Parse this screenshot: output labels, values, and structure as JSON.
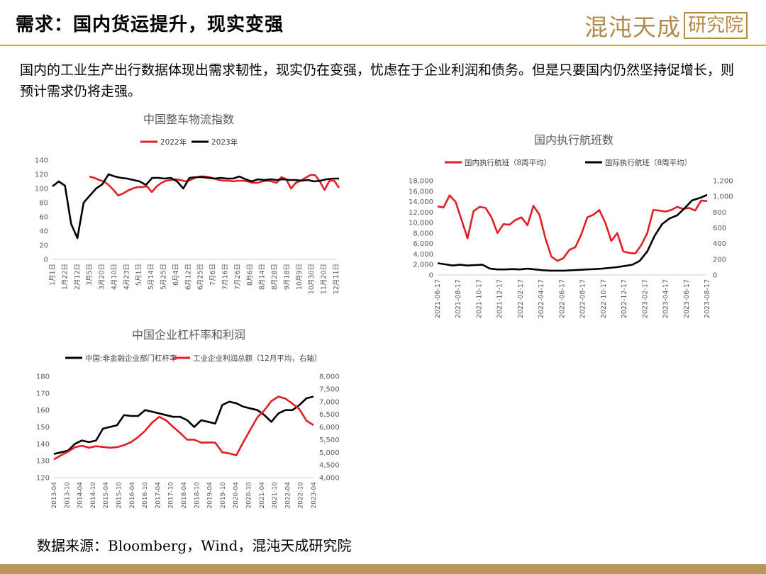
{
  "page": {
    "title": "需求：国内货运提升，现实变强",
    "logo_text": "混沌天成",
    "logo_box": "研究院",
    "paragraph": "国内的工业生产出行数据体现出需求韧性，现实仍在变强，忧虑在于企业利润和债务。但是只要国内仍然坚持促增长，则预计需求仍将走强。",
    "source": "数据来源：Bloomberg，Wind，混沌天成研究院",
    "accent_color": "#c9a468"
  },
  "chart_data": [
    {
      "type": "line",
      "title": "中国整车物流指数",
      "y_ticks": [
        "0",
        "20",
        "40",
        "60",
        "80",
        "100",
        "120",
        "140"
      ],
      "ylim": [
        0,
        140
      ],
      "x_ticks": [
        "1月1日",
        "1月22日",
        "2月12日",
        "3月5日",
        "3月20日",
        "4月10日",
        "4月23日",
        "5月1日",
        "5月14日",
        "5月25日",
        "6月4日",
        "6月12日",
        "6月25日",
        "7月6日",
        "7月16日",
        "7月26日",
        "8月6日",
        "8月14日",
        "8月28日",
        "9月18日",
        "10月9日",
        "10月30日",
        "11月20日",
        "12月11日"
      ],
      "series": [
        {
          "name": "2022年",
          "color": "#e31e24",
          "x_range": [
            3,
            46
          ],
          "values": [
            117,
            115,
            112,
            110,
            105,
            98,
            90,
            93,
            97,
            100,
            102,
            102,
            103,
            95,
            103,
            108,
            111,
            112,
            113,
            112,
            110,
            112,
            115,
            117,
            117,
            116,
            114,
            112,
            111,
            111,
            110,
            111,
            111,
            110,
            108,
            108,
            110,
            111,
            110,
            108,
            116,
            113,
            100,
            108,
            111,
            115,
            119,
            119,
            110,
            98,
            111,
            111,
            101
          ]
        },
        {
          "name": "2023年",
          "color": "#000000",
          "x_range": [
            0,
            27
          ],
          "values": [
            103,
            110,
            104,
            50,
            30,
            80,
            90,
            100,
            106,
            120,
            117,
            115,
            114,
            112,
            110,
            105,
            115,
            115,
            114,
            115,
            110,
            100,
            115,
            116,
            116,
            115,
            114,
            115,
            114,
            114,
            117,
            113,
            110,
            113,
            112,
            113,
            112,
            113,
            112,
            112,
            111,
            112,
            110,
            111,
            113,
            114,
            114
          ]
        }
      ]
    },
    {
      "type": "line",
      "title": "国内执行航班数",
      "y_ticks_left": [
        "0",
        "2,000",
        "4,000",
        "6,000",
        "8,000",
        "10,000",
        "12,000",
        "14,000",
        "16,000",
        "18,000"
      ],
      "y_ticks_right": [
        "0",
        "200",
        "400",
        "600",
        "800",
        "1,000",
        "1,200"
      ],
      "ylim_left": [
        0,
        18000
      ],
      "ylim_right": [
        0,
        1200
      ],
      "x_ticks": [
        "2021-06-17",
        "2021-08-17",
        "2021-10-17",
        "2021-12-17",
        "2022-02-17",
        "2022-04-17",
        "2022-06-17",
        "2022-08-17",
        "2022-10-17",
        "2022-12-17",
        "2023-02-17",
        "2023-04-17",
        "2023-06-17",
        "2023-08-17"
      ],
      "series": [
        {
          "name": "国内执行航班（8周平均）",
          "color": "#e31e24",
          "axis": "left",
          "values": [
            13100,
            12900,
            15200,
            14000,
            10500,
            7000,
            12200,
            13000,
            12800,
            11000,
            8000,
            9700,
            9600,
            10500,
            11000,
            9500,
            13200,
            11500,
            7000,
            3500,
            2700,
            3200,
            4800,
            5300,
            7800,
            11000,
            11500,
            12400,
            10000,
            6500,
            8000,
            4500,
            4200,
            4100,
            5700,
            8000,
            12400,
            12300,
            12100,
            12400,
            13000,
            12600,
            12800,
            12300,
            14200,
            14100
          ]
        },
        {
          "name": "国际执行航班（8周平均）",
          "color": "#000000",
          "axis": "right",
          "values": [
            150,
            135,
            120,
            130,
            120,
            125,
            130,
            80,
            70,
            70,
            75,
            70,
            80,
            70,
            60,
            55,
            55,
            55,
            60,
            65,
            70,
            75,
            80,
            90,
            100,
            115,
            130,
            180,
            300,
            500,
            650,
            720,
            760,
            850,
            950,
            980,
            1020
          ]
        }
      ]
    },
    {
      "type": "line",
      "title": "中国企业杠杆率和利润",
      "y_ticks_left": [
        "120",
        "130",
        "140",
        "150",
        "160",
        "170",
        "180"
      ],
      "y_ticks_right": [
        "4,000",
        "4,500",
        "5,000",
        "5,500",
        "6,000",
        "6,500",
        "7,000",
        "7,500",
        "8,000"
      ],
      "ylim_left": [
        120,
        180
      ],
      "ylim_right": [
        4000,
        8000
      ],
      "x_ticks": [
        "2013-04",
        "2013-10",
        "2014-04",
        "2014-10",
        "2015-04",
        "2015-10",
        "2016-04",
        "2016-10",
        "2017-04",
        "2017-10",
        "2018-04",
        "2018-10",
        "2019-04",
        "2019-10",
        "2020-04",
        "2020-10",
        "2021-04",
        "2021-10",
        "2022-04",
        "2022-10",
        "2023-04"
      ],
      "series": [
        {
          "name": "中国:非金融企业部门杠杆率",
          "color": "#000000",
          "axis": "left",
          "values": [
            134,
            135,
            136,
            140,
            142,
            141,
            142,
            149,
            150,
            151,
            157,
            156.5,
            156.5,
            160,
            159,
            158,
            157,
            156,
            156,
            154,
            150,
            154,
            153,
            152,
            163,
            165,
            164,
            162,
            161,
            160,
            157,
            153,
            158,
            160,
            160,
            163,
            167,
            168
          ]
        },
        {
          "name": "工业企业利润总额（12月平均，右轴）",
          "color": "#e31e24",
          "axis": "right",
          "values": [
            4720,
            4880,
            5020,
            5200,
            5260,
            5180,
            5240,
            5210,
            5180,
            5200,
            5280,
            5400,
            5600,
            5850,
            6170,
            6400,
            6260,
            6000,
            5760,
            5500,
            5500,
            5380,
            5390,
            5380,
            5000,
            4960,
            4880,
            5400,
            5900,
            6380,
            6660,
            7020,
            7200,
            7120,
            6920,
            6700,
            6250,
            6070
          ]
        }
      ]
    }
  ]
}
